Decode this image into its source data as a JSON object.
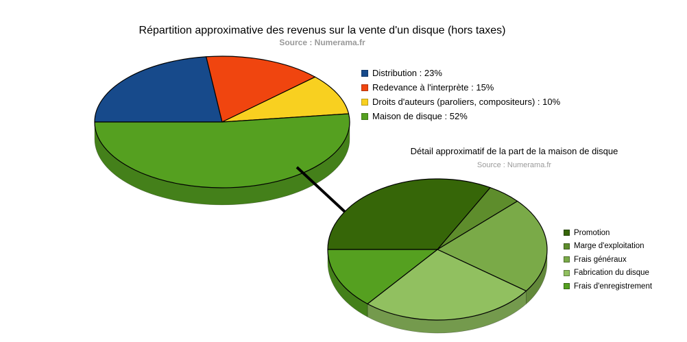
{
  "chart_data": [
    {
      "type": "pie",
      "title": "Répartition approximative des revenus sur la vente d'un disque (hors taxes)",
      "subtitle": "Source : Numerama.fr",
      "legend_position": "right",
      "slices": [
        {
          "label": "Distribution : 23%",
          "value": 23,
          "color": "#174a8b"
        },
        {
          "label": "Redevance à l'interprète : 15%",
          "value": 15,
          "color": "#f0450f"
        },
        {
          "label": "Droits d'auteurs (paroliers, compositeurs) : 10%",
          "value": 10,
          "color": "#f8d020"
        },
        {
          "label": "Maison de disque : 52%",
          "value": 52,
          "color": "#55a020"
        }
      ]
    },
    {
      "type": "pie",
      "title": "Détail approximatif de la part de la maison de disque",
      "subtitle": "Source : Numerama.fr",
      "legend_position": "right",
      "slices": [
        {
          "label": "Promotion",
          "value": 33,
          "color": "#366608"
        },
        {
          "label": "Marge d'exploitation",
          "value": 5,
          "color": "#5e8d2c"
        },
        {
          "label": "Frais généraux",
          "value": 22,
          "color": "#7aaa48"
        },
        {
          "label": "Fabrication du disque",
          "value": 26,
          "color": "#91c060"
        },
        {
          "label": "Frais d'enregistrement",
          "value": 14,
          "color": "#55a020"
        }
      ]
    }
  ]
}
